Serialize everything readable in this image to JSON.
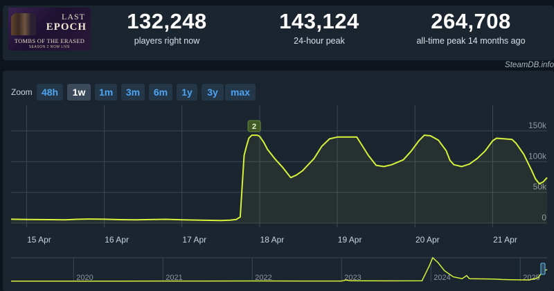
{
  "game": {
    "cover_title_1": "LAST",
    "cover_title_2": "EPOCH",
    "cover_subtitle": "TOMBS OF THE ERASED",
    "cover_tagline": "SEASON 2 NOW LIVE"
  },
  "stats": [
    {
      "value": "132,248",
      "label": "players right now"
    },
    {
      "value": "143,124",
      "label": "24-hour peak"
    },
    {
      "value": "264,708",
      "label": "all-time peak 14 months ago"
    }
  ],
  "credit": "SteamDB.info",
  "zoom": {
    "label": "Zoom",
    "options": [
      "48h",
      "1w",
      "1m",
      "3m",
      "6m",
      "1y",
      "3y",
      "max"
    ],
    "selected": "1w"
  },
  "colors": {
    "line": "#d6f23a",
    "grid": "#3b4856",
    "marker_bg": "#3f5a28"
  },
  "chart_data": [
    {
      "type": "line",
      "x_unit": "days (start of 15 Apr = 0)",
      "xlim": [
        -0.2,
        6.7
      ],
      "ylim": [
        0,
        160000
      ],
      "yticks": [
        0,
        50000,
        100000,
        150000
      ],
      "ytick_labels": [
        "0",
        "50k",
        "100k",
        "150k"
      ],
      "xticks": [
        0,
        1,
        2,
        3,
        4,
        5,
        6
      ],
      "xtick_labels": [
        "15 Apr",
        "16 Apr",
        "17 Apr",
        "18 Apr",
        "19 Apr",
        "20 Apr",
        "21 Apr"
      ],
      "annotation": {
        "label": "2",
        "x": 2.93,
        "y": 143000
      },
      "series": [
        {
          "name": "players",
          "points": [
            [
              -0.2,
              6300
            ],
            [
              0.0,
              6000
            ],
            [
              0.3,
              5600
            ],
            [
              0.5,
              5400
            ],
            [
              0.65,
              6200
            ],
            [
              0.8,
              6600
            ],
            [
              1.0,
              6300
            ],
            [
              1.2,
              5600
            ],
            [
              1.4,
              5400
            ],
            [
              1.6,
              5800
            ],
            [
              1.8,
              6200
            ],
            [
              2.0,
              5400
            ],
            [
              2.3,
              4600
            ],
            [
              2.5,
              4300
            ],
            [
              2.62,
              4700
            ],
            [
              2.7,
              6000
            ],
            [
              2.75,
              10000
            ],
            [
              2.8,
              110000
            ],
            [
              2.83,
              125000
            ],
            [
              2.86,
              138000
            ],
            [
              2.9,
              143000
            ],
            [
              2.97,
              143000
            ],
            [
              3.0,
              141000
            ],
            [
              3.05,
              132000
            ],
            [
              3.1,
              120000
            ],
            [
              3.2,
              104000
            ],
            [
              3.3,
              90000
            ],
            [
              3.4,
              74000
            ],
            [
              3.47,
              78000
            ],
            [
              3.55,
              85000
            ],
            [
              3.7,
              105000
            ],
            [
              3.8,
              125000
            ],
            [
              3.9,
              137000
            ],
            [
              4.0,
              140000
            ],
            [
              4.15,
              140000
            ],
            [
              4.25,
              140000
            ],
            [
              4.3,
              130000
            ],
            [
              4.4,
              110000
            ],
            [
              4.5,
              94000
            ],
            [
              4.6,
              92000
            ],
            [
              4.7,
              95000
            ],
            [
              4.85,
              103000
            ],
            [
              4.95,
              117000
            ],
            [
              5.05,
              134000
            ],
            [
              5.12,
              143000
            ],
            [
              5.2,
              142000
            ],
            [
              5.3,
              135000
            ],
            [
              5.4,
              118000
            ],
            [
              5.45,
              102000
            ],
            [
              5.5,
              95000
            ],
            [
              5.6,
              92000
            ],
            [
              5.7,
              96000
            ],
            [
              5.8,
              105000
            ],
            [
              5.9,
              117000
            ],
            [
              6.0,
              134000
            ],
            [
              6.05,
              138000
            ],
            [
              6.15,
              137000
            ],
            [
              6.25,
              136000
            ],
            [
              6.3,
              130000
            ],
            [
              6.4,
              112000
            ],
            [
              6.5,
              86000
            ],
            [
              6.55,
              72000
            ],
            [
              6.6,
              64000
            ],
            [
              6.65,
              67000
            ],
            [
              6.7,
              74000
            ]
          ]
        }
      ]
    },
    {
      "type": "line",
      "role": "navigator",
      "xlim": [
        2019.3,
        2025.3
      ],
      "xticks": [
        2020,
        2021,
        2022,
        2023,
        2024,
        2025
      ],
      "xtick_labels": [
        "2020",
        "2021",
        "2022",
        "2023",
        "2024",
        "2025"
      ],
      "ylim": [
        0,
        265000
      ],
      "series": [
        {
          "name": "history",
          "points": [
            [
              2019.3,
              2000
            ],
            [
              2019.9,
              2200
            ],
            [
              2020.5,
              2600
            ],
            [
              2021.0,
              3000
            ],
            [
              2021.5,
              2800
            ],
            [
              2022.0,
              4000
            ],
            [
              2022.5,
              3500
            ],
            [
              2023.0,
              2800
            ],
            [
              2023.05,
              14000
            ],
            [
              2023.1,
              6000
            ],
            [
              2023.5,
              5000
            ],
            [
              2023.9,
              6000
            ],
            [
              2023.98,
              170000
            ],
            [
              2024.02,
              264708
            ],
            [
              2024.08,
              210000
            ],
            [
              2024.15,
              120000
            ],
            [
              2024.25,
              50000
            ],
            [
              2024.35,
              30000
            ],
            [
              2024.4,
              65000
            ],
            [
              2024.43,
              30000
            ],
            [
              2024.7,
              25000
            ],
            [
              2024.8,
              20000
            ],
            [
              2024.9,
              18000
            ],
            [
              2025.0,
              16000
            ],
            [
              2025.1,
              15000
            ],
            [
              2025.2,
              40000
            ],
            [
              2025.25,
              110000
            ],
            [
              2025.3,
              132248
            ]
          ]
        }
      ]
    }
  ]
}
